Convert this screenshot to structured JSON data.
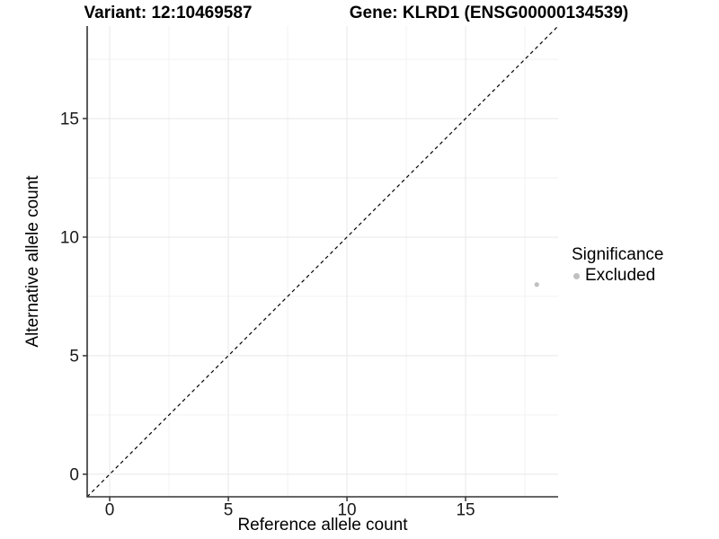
{
  "header": {
    "title_left": "Variant: 12:10469587",
    "title_right": "Gene: KLRD1 (ENSG00000134539)"
  },
  "chart_data": {
    "type": "scatter",
    "title_parts": [
      "Variant: 12:10469587",
      "Gene: KLRD1 (ENSG00000134539)"
    ],
    "xlabel": "Reference allele count",
    "ylabel": "Alternative allele count",
    "xlim": [
      -0.95,
      18.9
    ],
    "ylim": [
      -0.95,
      18.9
    ],
    "x_ticks": [
      0,
      5,
      10,
      15
    ],
    "y_ticks": [
      0,
      5,
      10,
      15
    ],
    "x_minor_ticks": [
      2.5,
      7.5,
      12.5,
      17.5
    ],
    "y_minor_ticks": [
      2.5,
      7.5,
      12.5,
      17.5
    ],
    "grid": "major and minor gridlines, light gray on white",
    "legend": {
      "title": "Significance",
      "position": "right",
      "items": [
        {
          "label": "Excluded",
          "color": "#c0c0c0",
          "marker": "circle"
        }
      ]
    },
    "series": [
      {
        "name": "Excluded",
        "color": "#c0c0c0",
        "points": [
          [
            18,
            8
          ]
        ]
      }
    ],
    "reference_line": {
      "type": "identity y=x",
      "style": "dashed",
      "color": "#000000"
    },
    "colors": {
      "grid_major": "#e7e7e7",
      "grid_minor": "#f2f2f2",
      "axis": "#333333",
      "tick_text": "#1a1a1a",
      "point": "#c0c0c0"
    }
  }
}
